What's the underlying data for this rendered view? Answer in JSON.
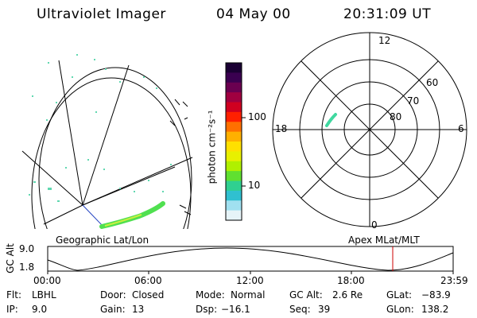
{
  "header": {
    "instrument": "Ultraviolet Imager",
    "date": "04 May 00",
    "time": "20:31:09 UT"
  },
  "colorbar": {
    "unit_label": "photon cm⁻²s⁻¹",
    "tick_100": "100",
    "tick_10": "10",
    "colors": [
      "#1a0033",
      "#3a0050",
      "#6a0050",
      "#a00040",
      "#d00020",
      "#ff2000",
      "#ff7000",
      "#ffb000",
      "#ffe000",
      "#e8f000",
      "#b0f000",
      "#60e030",
      "#30d090",
      "#30c0d0",
      "#a0e0f0",
      "#e6f4f8"
    ]
  },
  "polar_plot": {
    "mlt_labels": {
      "top": "12",
      "left": "18",
      "right": "6",
      "bottom": "0"
    },
    "lat_labels": [
      "60",
      "70",
      "80"
    ]
  },
  "timeline": {
    "left_label": "Geographic Lat/Lon",
    "right_label": "Apex MLat/MLT",
    "axis_title": "GC Alt",
    "y_ticks": [
      "9.0",
      "1.8"
    ],
    "x_ticks": [
      "00:00",
      "06:00",
      "12:00",
      "18:00",
      "23:59"
    ],
    "marker_color": "#cc0000"
  },
  "status": {
    "flt_label": "Flt:",
    "flt_value": "LBHL",
    "ip_label": "IP:",
    "ip_value": "9.0",
    "door_label": "Door:",
    "door_value": "Closed",
    "gain_label": "Gain:",
    "gain_value": "13",
    "mode_label": "Mode:",
    "mode_value": "Normal",
    "dsp_label": "Dsp:",
    "dsp_value": "−16.1",
    "gcalt_label": "GC Alt:",
    "gcalt_value": "2.6 Re",
    "seq_label": "Seq:",
    "seq_value": "39",
    "glat_label": "GLat:",
    "glat_value": "−83.9",
    "glon_label": "GLon:",
    "glon_value": "138.2"
  }
}
